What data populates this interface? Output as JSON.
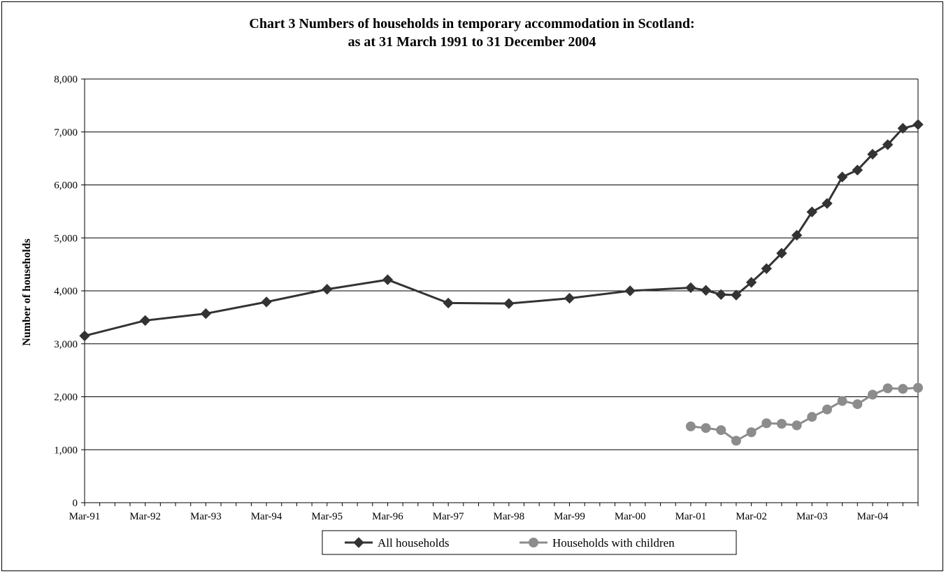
{
  "chart_data": {
    "type": "line",
    "title_lines": [
      "Chart 3  Numbers of households in temporary accommodation in Scotland:",
      "as at 31 March 1991 to 31 December 2004"
    ],
    "xlabel": "",
    "ylabel": "Number of households",
    "ylim": [
      0,
      8000
    ],
    "yticks": [
      0,
      1000,
      2000,
      3000,
      4000,
      5000,
      6000,
      7000,
      8000
    ],
    "ytick_labels": [
      "0",
      "1,000",
      "2,000",
      "3,000",
      "4,000",
      "5,000",
      "6,000",
      "7,000",
      "8,000"
    ],
    "xlim": [
      1991.25,
      2005.0
    ],
    "xticks": [
      1991.25,
      1992.25,
      1993.25,
      1994.25,
      1995.25,
      1996.25,
      1997.25,
      1998.25,
      1999.25,
      2000.25,
      2001.25,
      2002.25,
      2003.25,
      2004.25
    ],
    "xtick_labels": [
      "Mar-91",
      "Mar-92",
      "Mar-93",
      "Mar-94",
      "Mar-95",
      "Mar-96",
      "Mar-97",
      "Mar-98",
      "Mar-99",
      "Mar-00",
      "Mar-01",
      "Mar-02",
      "Mar-03",
      "Mar-04"
    ],
    "grid": "horizontal",
    "legend": "bottom-center",
    "series": [
      {
        "name": "All households",
        "marker": "diamond",
        "color": "#333333",
        "x": [
          1991.25,
          1992.25,
          1993.25,
          1994.25,
          1995.25,
          1996.25,
          1997.25,
          1998.25,
          1999.25,
          2000.25,
          2001.25,
          2001.5,
          2001.75,
          2002.0,
          2002.25,
          2002.5,
          2002.75,
          2003.0,
          2003.25,
          2003.5,
          2003.75,
          2004.0,
          2004.25,
          2004.5,
          2004.75,
          2005.0
        ],
        "values": [
          3150,
          3440,
          3570,
          3790,
          4030,
          4210,
          3770,
          3760,
          3860,
          4000,
          4060,
          4010,
          3930,
          3920,
          4160,
          4420,
          4710,
          5050,
          5490,
          5650,
          6150,
          6280,
          6580,
          6760,
          7070,
          7140
        ]
      },
      {
        "name": "Households with children",
        "marker": "circle",
        "color": "#8c8c8c",
        "x": [
          2001.25,
          2001.5,
          2001.75,
          2002.0,
          2002.25,
          2002.5,
          2002.75,
          2003.0,
          2003.25,
          2003.5,
          2003.75,
          2004.0,
          2004.25,
          2004.5,
          2004.75,
          2005.0
        ],
        "values": [
          1440,
          1410,
          1370,
          1170,
          1330,
          1500,
          1490,
          1460,
          1620,
          1760,
          1920,
          1860,
          2040,
          2160,
          2150,
          2170
        ]
      }
    ]
  }
}
